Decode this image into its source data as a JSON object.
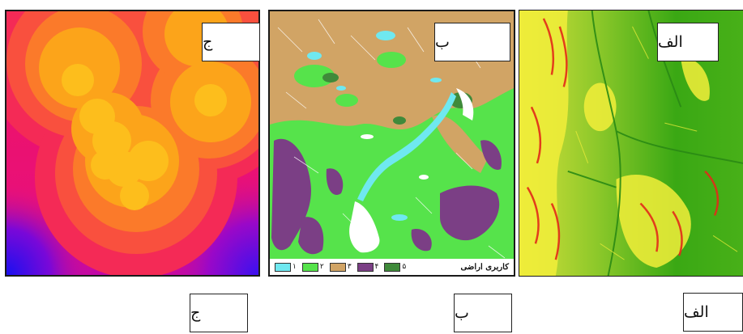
{
  "panels": {
    "j": {
      "label": "ج",
      "caption": "ج"
    },
    "b": {
      "label": "ب",
      "caption": "ب"
    },
    "alef": {
      "label": "الف",
      "caption": "الف"
    }
  },
  "legend": {
    "title": "کاربری اراضی",
    "items": [
      {
        "label": "۱",
        "color": "#6fe8f0"
      },
      {
        "label": "۲",
        "color": "#56e34b"
      },
      {
        "label": "۳",
        "color": "#d1a465"
      },
      {
        "label": "۴",
        "color": "#7b3f85"
      },
      {
        "label": "۵",
        "color": "#3f8a3a"
      }
    ]
  },
  "colors": {
    "distance_ramp": [
      "#0000f5",
      "#e8006e",
      "#f72a58",
      "#fb5a3c",
      "#fb8a24",
      "#fcae10",
      "#ffd020"
    ],
    "landuse_white": "#ffffff",
    "suitability_green": "#3aa814",
    "suitability_yellow": "#f3ef3a",
    "suitability_red": "#e22a18"
  }
}
